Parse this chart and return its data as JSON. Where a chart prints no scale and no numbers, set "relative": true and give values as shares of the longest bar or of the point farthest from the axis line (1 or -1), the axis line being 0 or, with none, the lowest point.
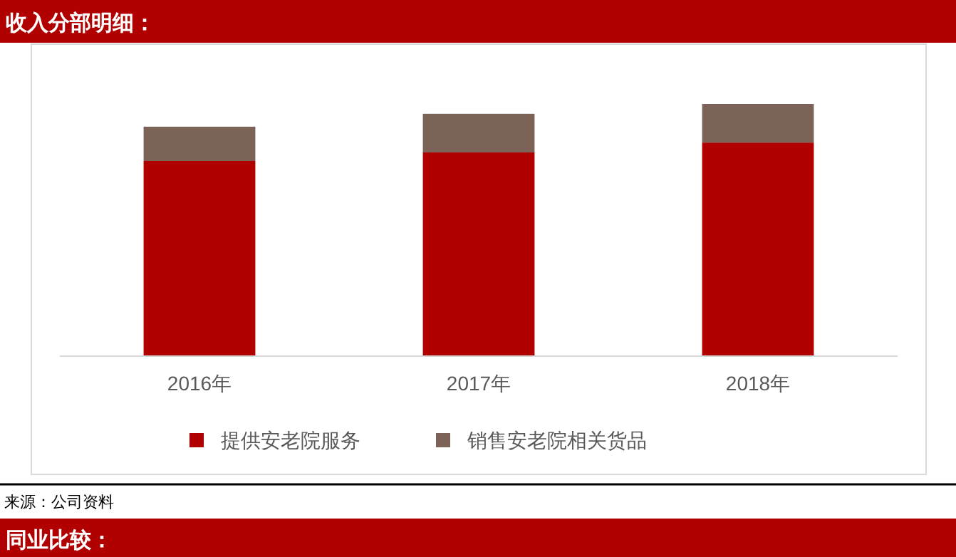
{
  "chart_data": {
    "type": "bar",
    "title": "收入分部明细：",
    "categories": [
      "2016年",
      "2017年",
      "2018年"
    ],
    "stacked": true,
    "relative": true,
    "legend": "bottom",
    "series": [
      {
        "name": "提供安老院服务",
        "color": "#b00000",
        "values": [
          0.774,
          0.808,
          0.847
        ]
      },
      {
        "name": "销售安老院相关货品",
        "color": "#7b6457",
        "values": [
          0.136,
          0.153,
          0.153
        ]
      }
    ],
    "annotations": [
      "来源：公司资料",
      "同业比较："
    ]
  }
}
